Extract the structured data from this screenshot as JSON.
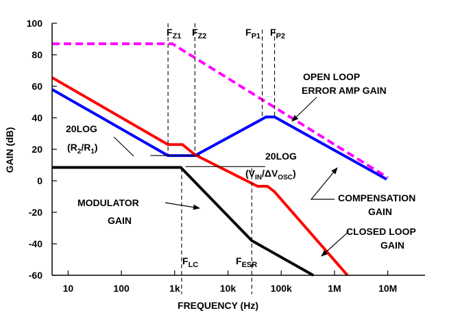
{
  "chart_data": {
    "type": "line",
    "xlabel": "FREQUENCY (Hz)",
    "ylabel": "GAIN (dB)",
    "x_scale": "log",
    "xlim": [
      5,
      50000000
    ],
    "ylim": [
      -60,
      100
    ],
    "x_ticks": [
      {
        "value": 10,
        "label": "10"
      },
      {
        "value": 100,
        "label": "100"
      },
      {
        "value": 1000,
        "label": "1k"
      },
      {
        "value": 10000,
        "label": "10k"
      },
      {
        "value": 100000,
        "label": "100k"
      },
      {
        "value": 1000000,
        "label": "1M"
      },
      {
        "value": 10000000,
        "label": "10M"
      }
    ],
    "y_ticks": [
      {
        "value": 100,
        "label": "100"
      },
      {
        "value": 80,
        "label": "80"
      },
      {
        "value": 60,
        "label": "60"
      },
      {
        "value": 40,
        "label": "40"
      },
      {
        "value": 20,
        "label": "20"
      },
      {
        "value": 0,
        "label": "0"
      },
      {
        "value": -20,
        "label": "-20"
      },
      {
        "value": -40,
        "label": "-40"
      },
      {
        "value": -60,
        "label": "-60"
      }
    ],
    "grid": false,
    "series": [
      {
        "key": "open-loop",
        "color": "#ff00ff",
        "style": "dashed",
        "points": [
          [
            5,
            87
          ],
          [
            900,
            87
          ],
          [
            10000000,
            2
          ]
        ]
      },
      {
        "key": "compensation",
        "color": "#0000ff",
        "style": "solid",
        "points": [
          [
            5,
            58
          ],
          [
            750,
            16
          ],
          [
            2400,
            16
          ],
          [
            52000,
            40.5
          ],
          [
            75000,
            40.5
          ],
          [
            9500000,
            1
          ]
        ]
      },
      {
        "key": "closed-loop",
        "color": "#ff0000",
        "style": "solid",
        "points": [
          [
            5,
            65.5
          ],
          [
            750,
            23
          ],
          [
            1400,
            23
          ],
          [
            2400,
            16.5
          ],
          [
            36000,
            -3.5
          ],
          [
            55000,
            -3.5
          ],
          [
            75000,
            -7
          ],
          [
            1750000,
            -60
          ]
        ]
      },
      {
        "key": "modulator",
        "color": "#000000",
        "style": "solid",
        "points": [
          [
            5,
            8.5
          ],
          [
            1300,
            8.5
          ],
          [
            28000,
            -38
          ],
          [
            400000,
            -60
          ]
        ]
      }
    ],
    "markers": [
      {
        "x": 750,
        "y_top": 100,
        "y_bottom": 16
      },
      {
        "x": 2400,
        "y_top": 100,
        "y_bottom": 16
      },
      {
        "x": 44000,
        "y_top": 96,
        "y_bottom": 40
      },
      {
        "x": 75000,
        "y_top": 96,
        "y_bottom": 40
      },
      {
        "x": 1350,
        "y_top": 8,
        "y_bottom": -72
      },
      {
        "x": 28000,
        "y_top": 8,
        "y_bottom": -72
      },
      {
        "x": 350,
        "y_top": 16,
        "y_bottom": 16,
        "x_end": 3000
      },
      {
        "x": 1600,
        "y_top": 9,
        "y_bottom": 9,
        "x_end": 50000
      }
    ],
    "annotations": {
      "fz1": {
        "main": "F",
        "sub": "Z1"
      },
      "fz2": {
        "main": "F",
        "sub": "Z2"
      },
      "fp1": {
        "main": "F",
        "sub": "P1"
      },
      "fp2": {
        "main": "F",
        "sub": "P2"
      },
      "flc": {
        "main": "F",
        "sub": "LC"
      },
      "fesr": {
        "main": "F",
        "sub": "ESR"
      },
      "open_loop_line1": "OPEN LOOP",
      "open_loop_line2": "ERROR AMP GAIN",
      "r_line1": "20LOG",
      "r_open": "(R",
      "r_sub2": "2",
      "r_mid": "/R",
      "r_sub1": "1",
      "r_close": ")",
      "v_line1": "20LOG",
      "v_open": "(V",
      "v_sub_in": "IN",
      "v_mid": "/ΔV",
      "v_sub_osc": "OSC",
      "v_close": ")",
      "comp_line1": "COMPENSATION",
      "comp_line2": "GAIN",
      "mod_line1": "MODULATOR",
      "mod_line2": "GAIN",
      "closed_line1": "CLOSED LOOP",
      "closed_line2": "GAIN"
    }
  }
}
